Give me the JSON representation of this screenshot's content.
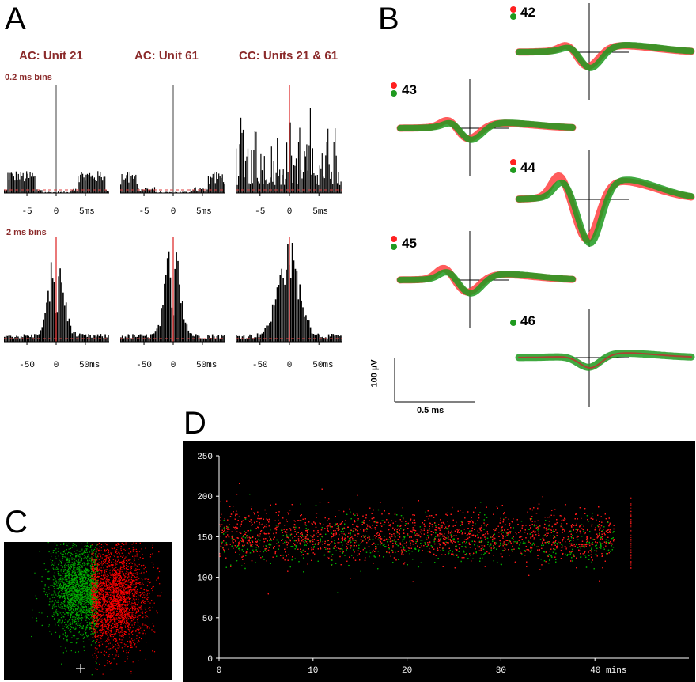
{
  "panels": {
    "a_letter": "A",
    "b_letter": "B",
    "c_letter": "C",
    "d_letter": "D"
  },
  "colors": {
    "accent_red": "#8b2b2b",
    "unit_red": "#ff2020",
    "unit_green": "#1f9a1f",
    "spike_red": "#ff0000",
    "spike_green": "#00b000"
  },
  "panel_a": {
    "titles": [
      "AC: Unit 21",
      "AC: Unit 61",
      "CC: Units 21 & 61"
    ],
    "row1_bin_label": "0.2 ms bins",
    "row2_bin_label": "2 ms bins"
  },
  "chart_data": [
    {
      "id": "a-row1",
      "type": "bar",
      "title": "",
      "xlabel": "",
      "ylabel": "",
      "xlim": [
        -9,
        9
      ],
      "xticks": [
        -5,
        0,
        5
      ],
      "tick_labels": [
        "-5",
        "0",
        "5ms"
      ],
      "bin_width_ms": 0.2,
      "subplots": [
        {
          "name": "",
          "peak_description": "central spike at 0, flanks at ±5",
          "center": 0
        },
        {
          "name": "",
          "center": 0
        },
        {
          "name": "",
          "center": 0
        }
      ]
    },
    {
      "id": "a-row2",
      "type": "bar",
      "title": "",
      "xlim": [
        -90,
        90
      ],
      "xticks": [
        -50,
        0,
        50
      ],
      "tick_labels": [
        "-50",
        "0",
        "50ms"
      ],
      "bin_width_ms": 2
    },
    {
      "id": "b-waveforms",
      "type": "line",
      "units": [
        {
          "label": "42",
          "colors": [
            "red",
            "green"
          ]
        },
        {
          "label": "43",
          "colors": [
            "red",
            "green"
          ]
        },
        {
          "label": "44",
          "colors": [
            "red",
            "green"
          ]
        },
        {
          "label": "45",
          "colors": [
            "red",
            "green"
          ]
        },
        {
          "label": "46",
          "colors": [
            "green"
          ]
        }
      ],
      "scale_bar": {
        "y_label": "100 µV",
        "x_label": "0.5 ms"
      }
    },
    {
      "id": "c-cluster",
      "type": "scatter",
      "clusters": [
        {
          "color": "green",
          "center": [
            95,
            60
          ]
        },
        {
          "color": "red",
          "center": [
            140,
            70
          ]
        }
      ]
    },
    {
      "id": "d-amplitude-time",
      "type": "scatter",
      "xlabel": "",
      "ylabel": "",
      "xlim": [
        0,
        50
      ],
      "ylim": [
        0,
        250
      ],
      "xticks": [
        0,
        10,
        20,
        30,
        40
      ],
      "x_tick_labels": [
        "0",
        "10",
        "20",
        "30",
        "40 mins"
      ],
      "yticks": [
        0,
        50,
        100,
        150,
        200,
        250
      ],
      "y_tick_labels": [
        "0",
        "50",
        "100",
        "150",
        "200",
        "250"
      ],
      "series": [
        {
          "name": "",
          "color": "red",
          "x_range": [
            0,
            42
          ],
          "y_center": 150
        },
        {
          "name": "",
          "color": "green",
          "x_range": [
            0,
            42
          ],
          "y_center": 145
        }
      ]
    }
  ]
}
